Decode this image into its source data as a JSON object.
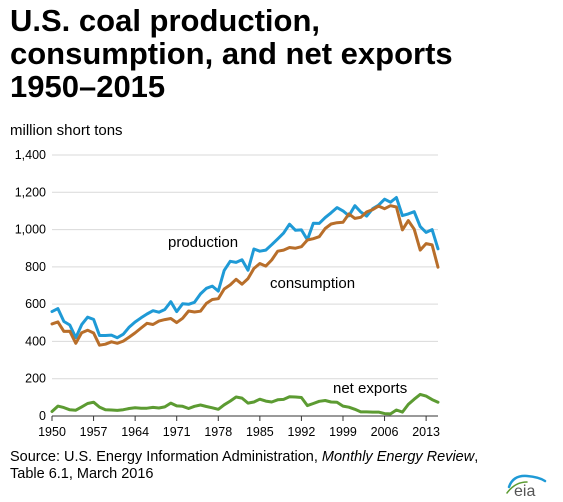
{
  "title": {
    "line1": "U.S. coal production,",
    "line2": "consumption, and net exports",
    "line3": "1950–2015"
  },
  "units_label": "million short tons",
  "source": {
    "prefix": "Source: U.S. Energy Information Administration, ",
    "publication": "Monthly Energy Review",
    "suffix": ",",
    "line2": "Table 6.1, March 2016"
  },
  "logo": {
    "text": "eia",
    "icon": "eia-logo-icon"
  },
  "colors": {
    "production": "#1f9ad6",
    "consumption": "#b86e2a",
    "net_exports": "#5c9b32",
    "grid": "#d9d9d9",
    "axis": "#333333"
  },
  "chart_data": {
    "type": "line",
    "title": "U.S. coal production, consumption, and net exports 1950–2015",
    "ylabel": "million short tons",
    "xlabel": "",
    "xlim": [
      1950,
      2015
    ],
    "ylim": [
      0,
      1400
    ],
    "grid": true,
    "x_ticks": [
      "1950",
      "1957",
      "1964",
      "1971",
      "1978",
      "1985",
      "1992",
      "1999",
      "2006",
      "2013"
    ],
    "y_ticks": [
      "0",
      "200",
      "400",
      "600",
      "800",
      "1,000",
      "1,200",
      "1,400"
    ],
    "y_tick_values": [
      0,
      200,
      400,
      600,
      800,
      1000,
      1200,
      1400
    ],
    "x": [
      1950,
      1951,
      1952,
      1953,
      1954,
      1955,
      1956,
      1957,
      1958,
      1959,
      1960,
      1961,
      1962,
      1963,
      1964,
      1965,
      1966,
      1967,
      1968,
      1969,
      1970,
      1971,
      1972,
      1973,
      1974,
      1975,
      1976,
      1977,
      1978,
      1979,
      1980,
      1981,
      1982,
      1983,
      1984,
      1985,
      1986,
      1987,
      1988,
      1989,
      1990,
      1991,
      1992,
      1993,
      1994,
      1995,
      1996,
      1997,
      1998,
      1999,
      2000,
      2001,
      2002,
      2003,
      2004,
      2005,
      2006,
      2007,
      2008,
      2009,
      2010,
      2011,
      2012,
      2013,
      2014,
      2015
    ],
    "series": [
      {
        "name": "production",
        "label_text": "production",
        "values": [
          560,
          576,
          507,
          488,
          420,
          490,
          530,
          518,
          432,
          432,
          434,
          420,
          439,
          477,
          504,
          527,
          547,
          565,
          557,
          571,
          613,
          560,
          602,
          599,
          610,
          655,
          685,
          697,
          670,
          781,
          830,
          824,
          838,
          782,
          896,
          884,
          890,
          919,
          950,
          981,
          1029,
          996,
          998,
          945,
          1034,
          1033,
          1064,
          1090,
          1118,
          1100,
          1074,
          1128,
          1094,
          1072,
          1112,
          1131,
          1163,
          1147,
          1172,
          1075,
          1084,
          1096,
          1016,
          985,
          1000,
          897
        ]
      },
      {
        "name": "consumption",
        "label_text": "consumption",
        "values": [
          494,
          505,
          454,
          455,
          390,
          447,
          460,
          445,
          380,
          385,
          398,
          390,
          402,
          423,
          446,
          472,
          497,
          491,
          509,
          517,
          523,
          501,
          524,
          563,
          558,
          562,
          604,
          625,
          629,
          681,
          703,
          733,
          707,
          737,
          791,
          818,
          804,
          837,
          884,
          890,
          904,
          900,
          908,
          944,
          951,
          962,
          1006,
          1030,
          1037,
          1039,
          1084,
          1060,
          1066,
          1095,
          1107,
          1126,
          1112,
          1128,
          1121,
          998,
          1048,
          1002,
          890,
          925,
          918,
          798
        ]
      },
      {
        "name": "net exports",
        "label_text": "net exports",
        "values": [
          24,
          53,
          45,
          33,
          31,
          49,
          67,
          74,
          48,
          33,
          32,
          30,
          34,
          40,
          44,
          42,
          42,
          46,
          43,
          49,
          69,
          54,
          52,
          40,
          52,
          59,
          51,
          44,
          36,
          60,
          80,
          102,
          96,
          69,
          75,
          90,
          80,
          75,
          87,
          89,
          103,
          102,
          99,
          56,
          67,
          79,
          83,
          75,
          74,
          53,
          47,
          36,
          22,
          22,
          21,
          21,
          13,
          11,
          32,
          21,
          62,
          90,
          116,
          107,
          88,
          74
        ]
      }
    ]
  }
}
